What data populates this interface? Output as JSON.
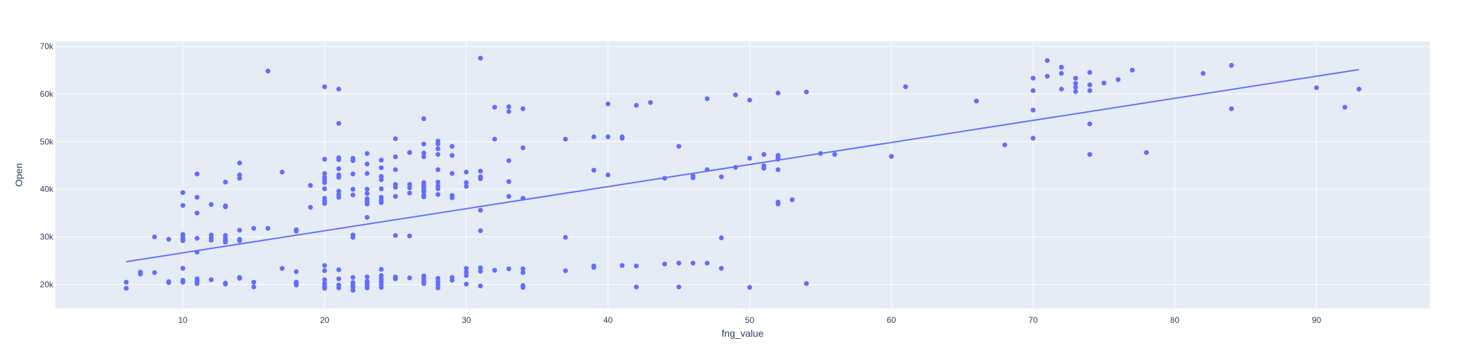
{
  "chart_data": {
    "type": "scatter",
    "title": "",
    "xlabel": "fng_value",
    "ylabel": "Open",
    "xlim": [
      1,
      98
    ],
    "ylim": [
      15000,
      71000
    ],
    "x_ticks": [
      10,
      20,
      30,
      40,
      50,
      60,
      70,
      80,
      90
    ],
    "x_tick_labels": [
      "10",
      "20",
      "30",
      "40",
      "50",
      "60",
      "70",
      "80",
      "90"
    ],
    "y_ticks": [
      20000,
      30000,
      40000,
      50000,
      60000,
      70000
    ],
    "y_tick_labels": [
      "20k",
      "30k",
      "40k",
      "50k",
      "60k",
      "70k"
    ],
    "grid": true,
    "colors": {
      "marker": "#636efa",
      "trendline": "#636efa",
      "plot_bg": "#e5ecf6",
      "grid": "#ffffff",
      "text": "#2a3f5f"
    },
    "trendline": {
      "x": [
        6,
        93
      ],
      "y": [
        24800,
        65100
      ]
    },
    "points": [
      [
        6,
        20500
      ],
      [
        6,
        19200
      ],
      [
        7,
        22600
      ],
      [
        7,
        22200
      ],
      [
        8,
        22500
      ],
      [
        8,
        30000
      ],
      [
        9,
        20600
      ],
      [
        9,
        20400
      ],
      [
        9,
        29500
      ],
      [
        10,
        39300
      ],
      [
        10,
        36600
      ],
      [
        10,
        30500
      ],
      [
        10,
        29600
      ],
      [
        10,
        29200
      ],
      [
        10,
        30100
      ],
      [
        10,
        23400
      ],
      [
        10,
        20900
      ],
      [
        10,
        20500
      ],
      [
        11,
        43200
      ],
      [
        11,
        38300
      ],
      [
        11,
        35000
      ],
      [
        11,
        29700
      ],
      [
        11,
        26800
      ],
      [
        11,
        21200
      ],
      [
        11,
        20600
      ],
      [
        11,
        20200
      ],
      [
        11,
        20900
      ],
      [
        12,
        36800
      ],
      [
        12,
        30400
      ],
      [
        12,
        29800
      ],
      [
        12,
        29300
      ],
      [
        12,
        21000
      ],
      [
        13,
        41500
      ],
      [
        13,
        36500
      ],
      [
        13,
        36300
      ],
      [
        13,
        30300
      ],
      [
        13,
        29700
      ],
      [
        13,
        29200
      ],
      [
        13,
        28900
      ],
      [
        13,
        20300
      ],
      [
        13,
        20100
      ],
      [
        14,
        45500
      ],
      [
        14,
        43000
      ],
      [
        14,
        42300
      ],
      [
        14,
        31400
      ],
      [
        14,
        29500
      ],
      [
        14,
        29200
      ],
      [
        14,
        21500
      ],
      [
        14,
        21300
      ],
      [
        15,
        31800
      ],
      [
        15,
        20500
      ],
      [
        15,
        19500
      ],
      [
        16,
        64800
      ],
      [
        16,
        31800
      ],
      [
        17,
        43600
      ],
      [
        17,
        23400
      ],
      [
        18,
        31500
      ],
      [
        18,
        31200
      ],
      [
        18,
        22700
      ],
      [
        18,
        20500
      ],
      [
        18,
        20200
      ],
      [
        18,
        19900
      ],
      [
        19,
        40800
      ],
      [
        19,
        36200
      ],
      [
        20,
        61500
      ],
      [
        20,
        46300
      ],
      [
        20,
        43300
      ],
      [
        20,
        42500
      ],
      [
        20,
        41900
      ],
      [
        20,
        41400
      ],
      [
        20,
        40100
      ],
      [
        20,
        38100
      ],
      [
        20,
        37500
      ],
      [
        20,
        37000
      ],
      [
        20,
        24000
      ],
      [
        20,
        22900
      ],
      [
        20,
        21000
      ],
      [
        20,
        20200
      ],
      [
        20,
        19600
      ],
      [
        20,
        19200
      ],
      [
        21,
        61000
      ],
      [
        21,
        53800
      ],
      [
        21,
        46600
      ],
      [
        21,
        46200
      ],
      [
        21,
        44300
      ],
      [
        21,
        43000
      ],
      [
        21,
        42500
      ],
      [
        21,
        39600
      ],
      [
        21,
        38900
      ],
      [
        21,
        38300
      ],
      [
        21,
        23100
      ],
      [
        21,
        21200
      ],
      [
        21,
        19900
      ],
      [
        21,
        19300
      ],
      [
        22,
        46500
      ],
      [
        22,
        46000
      ],
      [
        22,
        43200
      ],
      [
        22,
        40000
      ],
      [
        22,
        38800
      ],
      [
        22,
        30400
      ],
      [
        22,
        29900
      ],
      [
        22,
        21500
      ],
      [
        22,
        20400
      ],
      [
        22,
        19800
      ],
      [
        22,
        19500
      ],
      [
        22,
        18800
      ],
      [
        23,
        47500
      ],
      [
        23,
        45300
      ],
      [
        23,
        43300
      ],
      [
        23,
        40000
      ],
      [
        23,
        39100
      ],
      [
        23,
        38000
      ],
      [
        23,
        37400
      ],
      [
        23,
        36900
      ],
      [
        23,
        34100
      ],
      [
        23,
        21600
      ],
      [
        23,
        20700
      ],
      [
        23,
        20200
      ],
      [
        23,
        19800
      ],
      [
        23,
        19300
      ],
      [
        24,
        46100
      ],
      [
        24,
        44500
      ],
      [
        24,
        42700
      ],
      [
        24,
        42000
      ],
      [
        24,
        40100
      ],
      [
        24,
        38300
      ],
      [
        24,
        37700
      ],
      [
        24,
        37200
      ],
      [
        24,
        23200
      ],
      [
        24,
        21900
      ],
      [
        24,
        21200
      ],
      [
        24,
        20600
      ],
      [
        24,
        20000
      ],
      [
        24,
        19400
      ],
      [
        25,
        50600
      ],
      [
        25,
        46800
      ],
      [
        25,
        44100
      ],
      [
        25,
        41000
      ],
      [
        25,
        40400
      ],
      [
        25,
        38500
      ],
      [
        25,
        30300
      ],
      [
        25,
        21600
      ],
      [
        25,
        21200
      ],
      [
        26,
        47700
      ],
      [
        26,
        41000
      ],
      [
        26,
        40300
      ],
      [
        26,
        39200
      ],
      [
        26,
        30200
      ],
      [
        26,
        21400
      ],
      [
        27,
        54800
      ],
      [
        27,
        49500
      ],
      [
        27,
        47600
      ],
      [
        27,
        46800
      ],
      [
        27,
        41400
      ],
      [
        27,
        40900
      ],
      [
        27,
        40400
      ],
      [
        27,
        39900
      ],
      [
        27,
        39500
      ],
      [
        27,
        38800
      ],
      [
        27,
        38400
      ],
      [
        27,
        21800
      ],
      [
        27,
        21300
      ],
      [
        27,
        20700
      ],
      [
        27,
        20200
      ],
      [
        28,
        50100
      ],
      [
        28,
        49500
      ],
      [
        28,
        48500
      ],
      [
        28,
        47300
      ],
      [
        28,
        44100
      ],
      [
        28,
        41500
      ],
      [
        28,
        40700
      ],
      [
        28,
        40100
      ],
      [
        28,
        38900
      ],
      [
        28,
        21300
      ],
      [
        28,
        20600
      ],
      [
        28,
        20000
      ],
      [
        28,
        19300
      ],
      [
        29,
        49000
      ],
      [
        29,
        47100
      ],
      [
        29,
        43300
      ],
      [
        29,
        38700
      ],
      [
        29,
        38200
      ],
      [
        29,
        21500
      ],
      [
        29,
        20900
      ],
      [
        30,
        43600
      ],
      [
        30,
        41400
      ],
      [
        30,
        40600
      ],
      [
        30,
        23400
      ],
      [
        30,
        22600
      ],
      [
        30,
        21900
      ],
      [
        30,
        20100
      ],
      [
        31,
        67500
      ],
      [
        31,
        43800
      ],
      [
        31,
        42600
      ],
      [
        31,
        42200
      ],
      [
        31,
        35600
      ],
      [
        31,
        31300
      ],
      [
        31,
        23500
      ],
      [
        31,
        22800
      ],
      [
        31,
        19700
      ],
      [
        32,
        57200
      ],
      [
        32,
        50500
      ],
      [
        32,
        23000
      ],
      [
        33,
        57300
      ],
      [
        33,
        56300
      ],
      [
        33,
        46000
      ],
      [
        33,
        41600
      ],
      [
        33,
        38500
      ],
      [
        33,
        23300
      ],
      [
        34,
        56900
      ],
      [
        34,
        48700
      ],
      [
        34,
        38100
      ],
      [
        34,
        23300
      ],
      [
        34,
        22500
      ],
      [
        34,
        19800
      ],
      [
        34,
        19400
      ],
      [
        37,
        50500
      ],
      [
        37,
        29900
      ],
      [
        37,
        22900
      ],
      [
        39,
        51000
      ],
      [
        39,
        44000
      ],
      [
        39,
        23900
      ],
      [
        39,
        23600
      ],
      [
        40,
        57900
      ],
      [
        40,
        51000
      ],
      [
        40,
        43000
      ],
      [
        41,
        51000
      ],
      [
        41,
        50700
      ],
      [
        41,
        24000
      ],
      [
        42,
        57600
      ],
      [
        42,
        23900
      ],
      [
        42,
        19500
      ],
      [
        43,
        58200
      ],
      [
        44,
        42300
      ],
      [
        44,
        24300
      ],
      [
        45,
        49000
      ],
      [
        45,
        24500
      ],
      [
        45,
        19500
      ],
      [
        46,
        42800
      ],
      [
        46,
        42400
      ],
      [
        46,
        24500
      ],
      [
        47,
        59000
      ],
      [
        47,
        44100
      ],
      [
        47,
        24500
      ],
      [
        48,
        42600
      ],
      [
        48,
        29800
      ],
      [
        48,
        23400
      ],
      [
        49,
        59800
      ],
      [
        49,
        44600
      ],
      [
        50,
        58700
      ],
      [
        50,
        46500
      ],
      [
        50,
        19400
      ],
      [
        51,
        47300
      ],
      [
        51,
        44900
      ],
      [
        51,
        44400
      ],
      [
        52,
        60200
      ],
      [
        52,
        47100
      ],
      [
        52,
        46700
      ],
      [
        52,
        46300
      ],
      [
        52,
        44100
      ],
      [
        52,
        37300
      ],
      [
        52,
        36900
      ],
      [
        53,
        37800
      ],
      [
        54,
        60400
      ],
      [
        54,
        20200
      ],
      [
        55,
        47500
      ],
      [
        56,
        47300
      ],
      [
        60,
        46900
      ],
      [
        61,
        61500
      ],
      [
        66,
        58500
      ],
      [
        68,
        49300
      ],
      [
        70,
        63300
      ],
      [
        70,
        60700
      ],
      [
        70,
        56600
      ],
      [
        70,
        50700
      ],
      [
        71,
        67000
      ],
      [
        71,
        63700
      ],
      [
        72,
        65600
      ],
      [
        72,
        64300
      ],
      [
        72,
        61000
      ],
      [
        73,
        63300
      ],
      [
        73,
        62200
      ],
      [
        73,
        61400
      ],
      [
        73,
        60500
      ],
      [
        74,
        64500
      ],
      [
        74,
        61900
      ],
      [
        74,
        60700
      ],
      [
        74,
        53700
      ],
      [
        74,
        47300
      ],
      [
        75,
        62300
      ],
      [
        76,
        63000
      ],
      [
        77,
        65000
      ],
      [
        78,
        47700
      ],
      [
        82,
        64300
      ],
      [
        84,
        66000
      ],
      [
        84,
        56900
      ],
      [
        90,
        61300
      ],
      [
        92,
        57200
      ],
      [
        93,
        61000
      ]
    ]
  }
}
